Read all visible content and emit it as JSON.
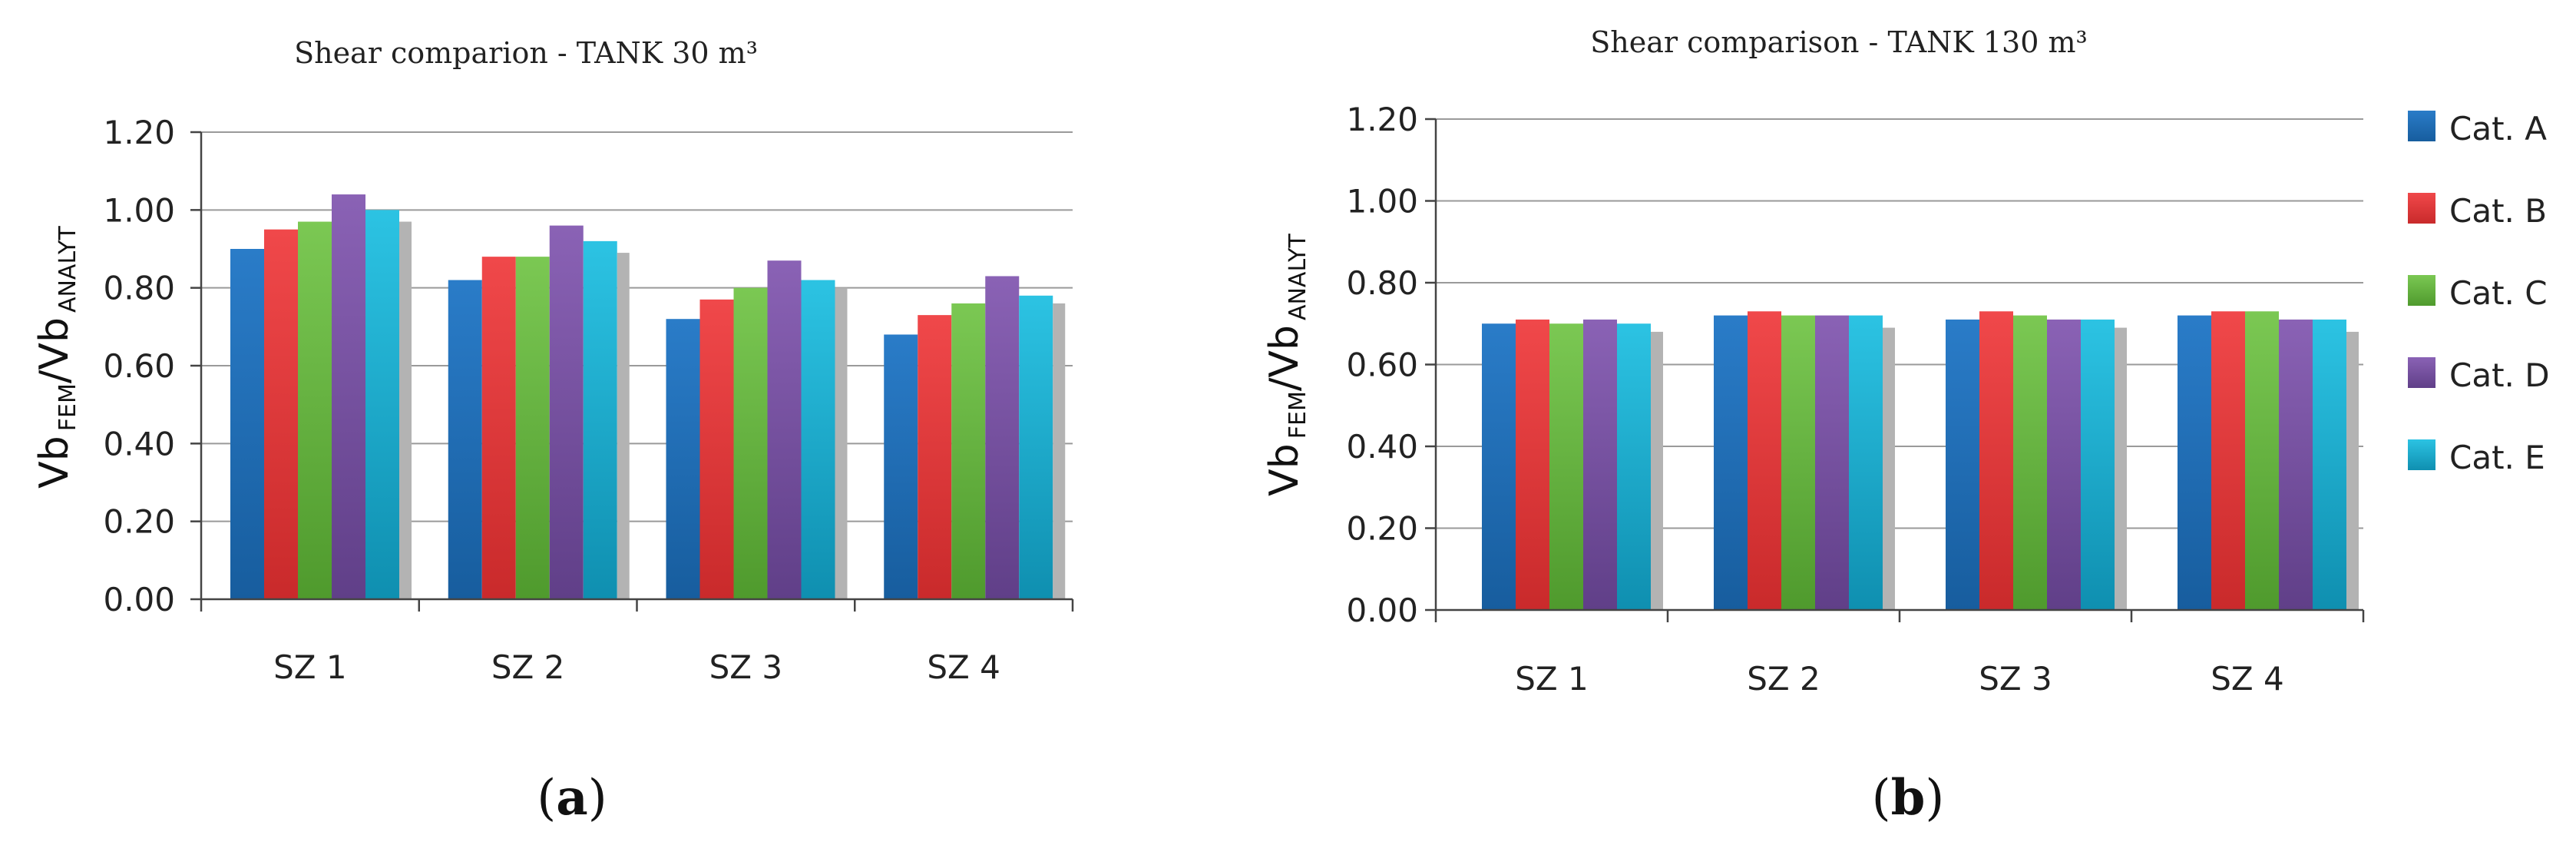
{
  "chart_data": [
    {
      "type": "bar",
      "panel_label": "a",
      "title": "Shear comparion  - TANK 30 m³",
      "ylabel_main": "Vb",
      "ylabel_sub1": "FEM",
      "ylabel_sub2": "ANALYT",
      "categories": [
        "SZ 1",
        "SZ 2",
        "SZ 3",
        "SZ 4"
      ],
      "ylim": [
        0,
        1.2
      ],
      "yticks": [
        "0.00",
        "0.20",
        "0.40",
        "0.60",
        "0.80",
        "1.00",
        "1.20"
      ],
      "grid": true,
      "series": [
        {
          "name": "Cat. A",
          "values": [
            0.9,
            0.82,
            0.72,
            0.68
          ]
        },
        {
          "name": "Cat. B",
          "values": [
            0.95,
            0.88,
            0.77,
            0.73
          ]
        },
        {
          "name": "Cat. C",
          "values": [
            0.97,
            0.88,
            0.8,
            0.76
          ]
        },
        {
          "name": "Cat. D",
          "values": [
            1.04,
            0.96,
            0.87,
            0.83
          ]
        },
        {
          "name": "Cat. E",
          "values": [
            1.0,
            0.92,
            0.82,
            0.78
          ]
        }
      ],
      "trailing_grey_values": [
        0.97,
        0.89,
        0.8,
        0.76
      ]
    },
    {
      "type": "bar",
      "panel_label": "b",
      "title": "Shear comparison - TANK 130 m³",
      "ylabel_main": "Vb",
      "ylabel_sub1": "FEM",
      "ylabel_sub2": "ANALYT",
      "categories": [
        "SZ 1",
        "SZ 2",
        "SZ 3",
        "SZ 4"
      ],
      "ylim": [
        0,
        1.2
      ],
      "yticks": [
        "0.00",
        "0.20",
        "0.40",
        "0.60",
        "0.80",
        "1.00",
        "1.20"
      ],
      "grid": true,
      "legend_placement": "right",
      "series": [
        {
          "name": "Cat. A",
          "values": [
            0.7,
            0.72,
            0.71,
            0.72
          ]
        },
        {
          "name": "Cat. B",
          "values": [
            0.71,
            0.73,
            0.73,
            0.73
          ]
        },
        {
          "name": "Cat. C",
          "values": [
            0.7,
            0.72,
            0.72,
            0.73
          ]
        },
        {
          "name": "Cat. D",
          "values": [
            0.71,
            0.72,
            0.71,
            0.71
          ]
        },
        {
          "name": "Cat. E",
          "values": [
            0.7,
            0.72,
            0.71,
            0.71
          ]
        }
      ],
      "trailing_grey_values": [
        0.68,
        0.69,
        0.69,
        0.68
      ]
    }
  ],
  "colors": {
    "Cat. A": "#1f6fb8",
    "Cat. B": "#e8393a",
    "Cat. C": "#6dbb43",
    "Cat. D": "#7b52a6",
    "Cat. E": "#1ab3d6",
    "grey": "#b3b3b3",
    "grid": "#9a9a9a",
    "axis": "#444444"
  }
}
